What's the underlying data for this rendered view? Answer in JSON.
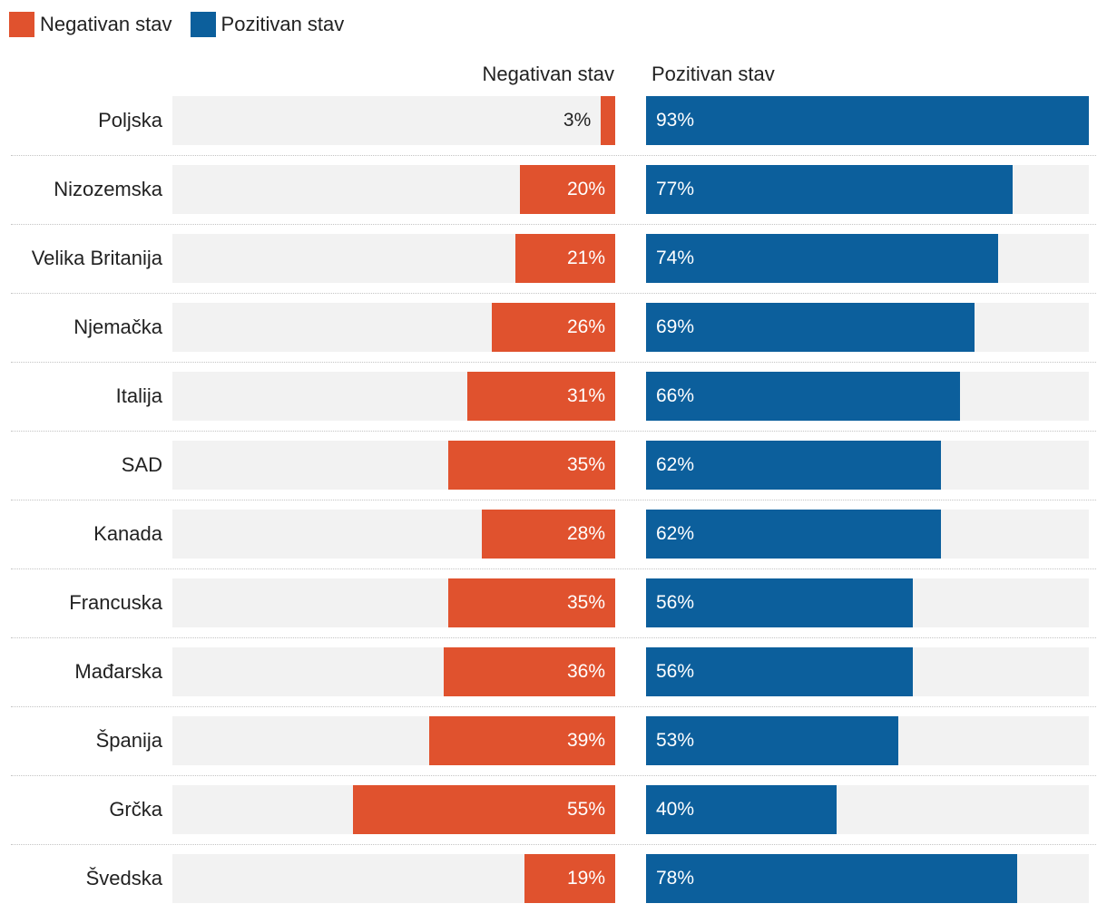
{
  "legend": {
    "negative_label": "Negativan stav",
    "positive_label": "Pozitivan stav"
  },
  "colors": {
    "negative": "#e0522e",
    "positive": "#0c5f9c",
    "track": "#f2f2f2"
  },
  "chart_data": {
    "type": "bar",
    "layout": "diverging-horizontal",
    "title": "",
    "column_headers": [
      "Negativan stav",
      "Pozitivan stav"
    ],
    "categories": [
      "Poljska",
      "Nizozemska",
      "Velika Britanija",
      "Njemačka",
      "Italija",
      "SAD",
      "Kanada",
      "Francuska",
      "Mađarska",
      "Španija",
      "Grčka",
      "Švedska"
    ],
    "series": [
      {
        "name": "Negativan stav",
        "values": [
          3,
          20,
          21,
          26,
          31,
          35,
          28,
          35,
          36,
          39,
          55,
          19
        ]
      },
      {
        "name": "Pozitivan stav",
        "values": [
          93,
          77,
          74,
          69,
          66,
          62,
          62,
          56,
          56,
          53,
          40,
          78
        ]
      }
    ],
    "value_suffix": "%",
    "xlim": [
      0,
      93
    ],
    "legend_position": "top-left"
  }
}
